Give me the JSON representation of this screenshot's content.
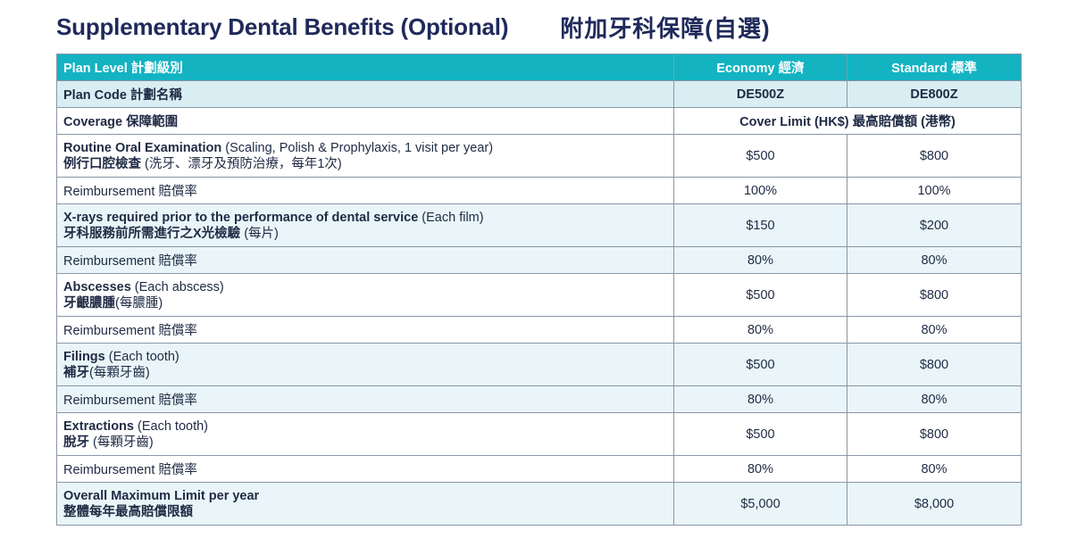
{
  "title": {
    "en": "Supplementary Dental Benefits (Optional)",
    "zh": "附加牙科保障(自選)"
  },
  "header": {
    "plan_level": "Plan Level 計劃級別",
    "economy": "Economy 經濟",
    "standard": "Standard 標準"
  },
  "plan_code": {
    "label": "Plan Code 計劃名稱",
    "economy": "DE500Z",
    "standard": "DE800Z"
  },
  "coverage": {
    "label": "Coverage 保障範圍",
    "limit_label": "Cover Limit (HK$) 最高賠償額 (港幣)"
  },
  "items": [
    {
      "name_en": "Routine Oral Examination",
      "note_en": " (Scaling, Polish & Prophylaxis, 1 visit per year)",
      "name_zh": "例行口腔檢查",
      "note_zh": " (洗牙、漂牙及預防治療，每年1次)",
      "economy": "$500",
      "standard": "$800",
      "reimb_label": "Reimbursement 賠償率",
      "reimb_economy": "100%",
      "reimb_standard": "100%"
    },
    {
      "name_en": "X-rays required prior to the performance of dental service",
      "note_en": " (Each film)",
      "name_zh": "牙科服務前所需進行之X光檢驗",
      "note_zh": " (每片)",
      "economy": "$150",
      "standard": "$200",
      "reimb_label": "Reimbursement 賠償率",
      "reimb_economy": "80%",
      "reimb_standard": "80%"
    },
    {
      "name_en": "Abscesses",
      "note_en": " (Each abscess)",
      "name_zh": "牙齦膿腫",
      "note_zh": "(每膿腫)",
      "economy": "$500",
      "standard": "$800",
      "reimb_label": "Reimbursement 賠償率",
      "reimb_economy": "80%",
      "reimb_standard": "80%"
    },
    {
      "name_en": "Filings",
      "note_en": " (Each tooth)",
      "name_zh": "補牙",
      "note_zh": "(每顆牙齒)",
      "economy": "$500",
      "standard": "$800",
      "reimb_label": "Reimbursement 賠償率",
      "reimb_economy": "80%",
      "reimb_standard": "80%"
    },
    {
      "name_en": "Extractions",
      "note_en": " (Each tooth)",
      "name_zh": "脫牙",
      "note_zh": " (每顆牙齒)",
      "economy": "$500",
      "standard": "$800",
      "reimb_label": "Reimbursement 賠償率",
      "reimb_economy": "80%",
      "reimb_standard": "80%"
    }
  ],
  "overall": {
    "label_en": "Overall Maximum Limit per year",
    "label_zh": "整體每年最高賠償限額",
    "economy": "$5,000",
    "standard": "$8,000"
  },
  "colors": {
    "header_bg": "#13b3c2",
    "subheader_bg": "#d8eef3",
    "tint_row_bg": "#e9f5f8",
    "title": "#1f2a5a"
  }
}
